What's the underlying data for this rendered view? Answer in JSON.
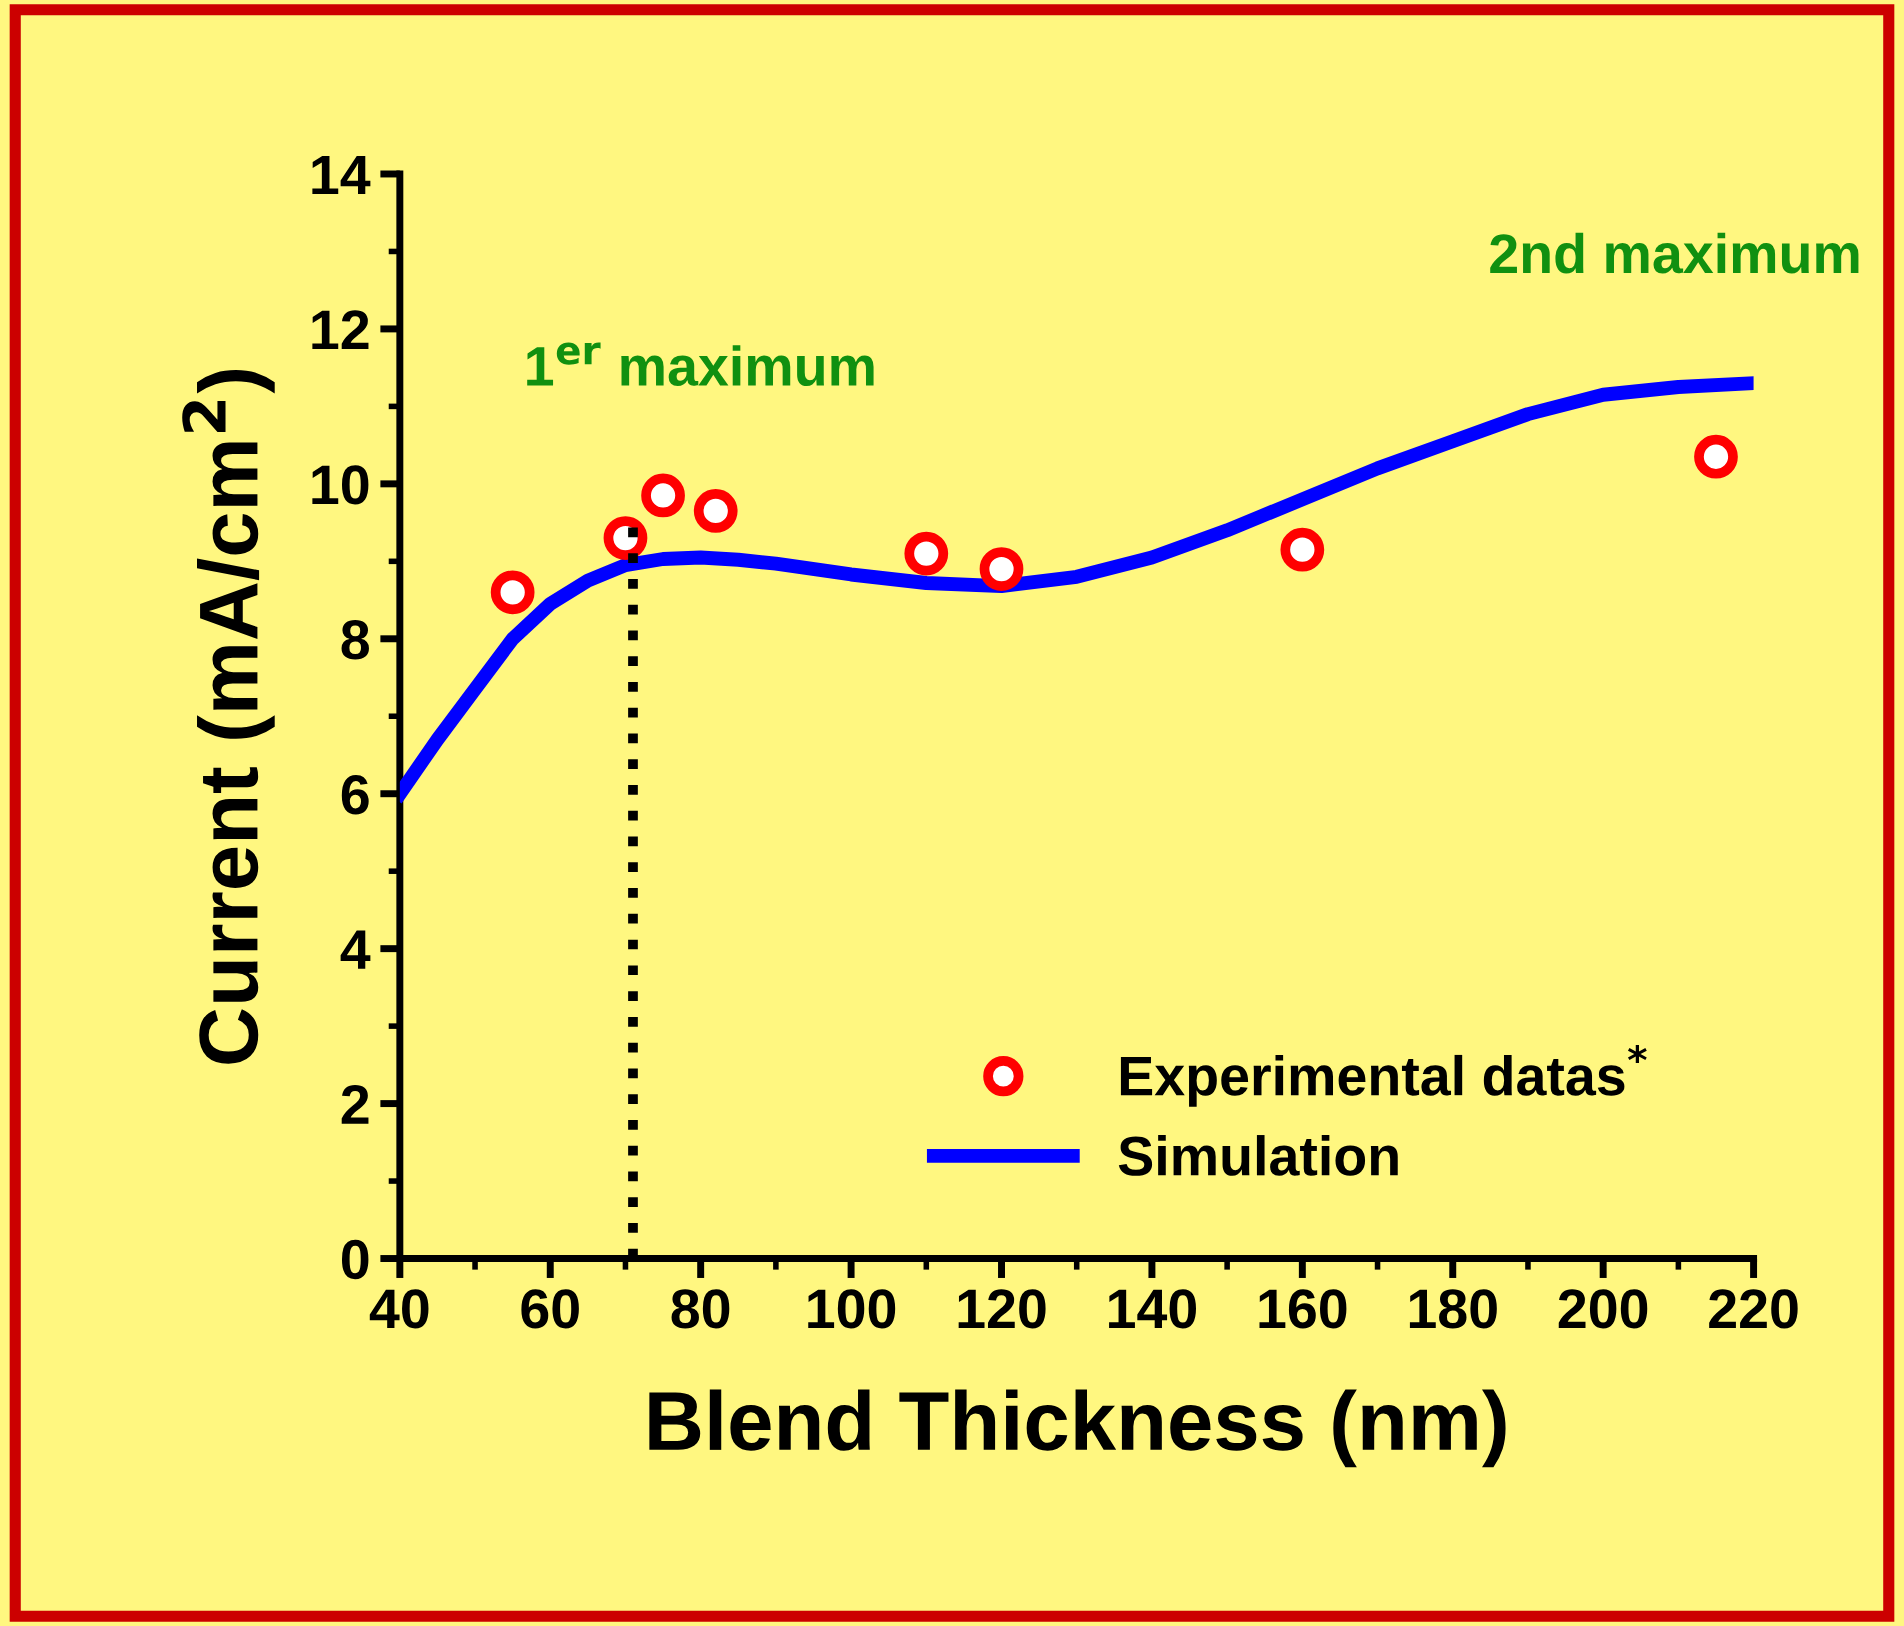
{
  "chart_data": {
    "type": "scatter",
    "xlabel": "Blend Thickness (nm)",
    "ylabel": "Current (mA/cm$^{2}$)",
    "xlim": [
      40,
      220
    ],
    "xticks": [
      40,
      60,
      80,
      100,
      120,
      140,
      160,
      180,
      200,
      220
    ],
    "ylim": [
      0,
      14
    ],
    "yticks": [
      0,
      2,
      4,
      6,
      8,
      10,
      12,
      14
    ],
    "series": [
      {
        "name": "Experimental datas$^{*}$",
        "color": "#ff0000",
        "marker": "circle",
        "x": [
          55,
          70,
          75,
          82,
          110,
          120,
          160,
          215
        ],
        "values": [
          8.6,
          9.3,
          9.85,
          9.65,
          9.1,
          8.9,
          9.15,
          10.35
        ]
      },
      {
        "name": "Simulation",
        "type": "line",
        "color": "#0000ff",
        "line_style": "solid",
        "x": [
          40,
          45,
          50,
          55,
          60,
          65,
          70,
          75,
          80,
          85,
          90,
          100,
          110,
          120,
          130,
          140,
          150,
          160,
          170,
          180,
          190,
          200,
          210,
          220
        ],
        "values": [
          6.0,
          6.7,
          7.35,
          8.0,
          8.45,
          8.75,
          8.95,
          9.03,
          9.05,
          9.02,
          8.97,
          8.83,
          8.72,
          8.68,
          8.8,
          9.05,
          9.4,
          9.8,
          10.2,
          10.55,
          10.9,
          11.15,
          11.25,
          11.3
        ]
      },
      {
        "type": "line",
        "color": "#000000",
        "line_style": "dotted",
        "x": [
          71,
          71
        ],
        "values": [
          0,
          9.5
        ]
      }
    ],
    "annotations": [
      "1$^{er}$ maximum",
      "2nd maximum"
    ],
    "legend": "bottom right",
    "grid": false
  }
}
